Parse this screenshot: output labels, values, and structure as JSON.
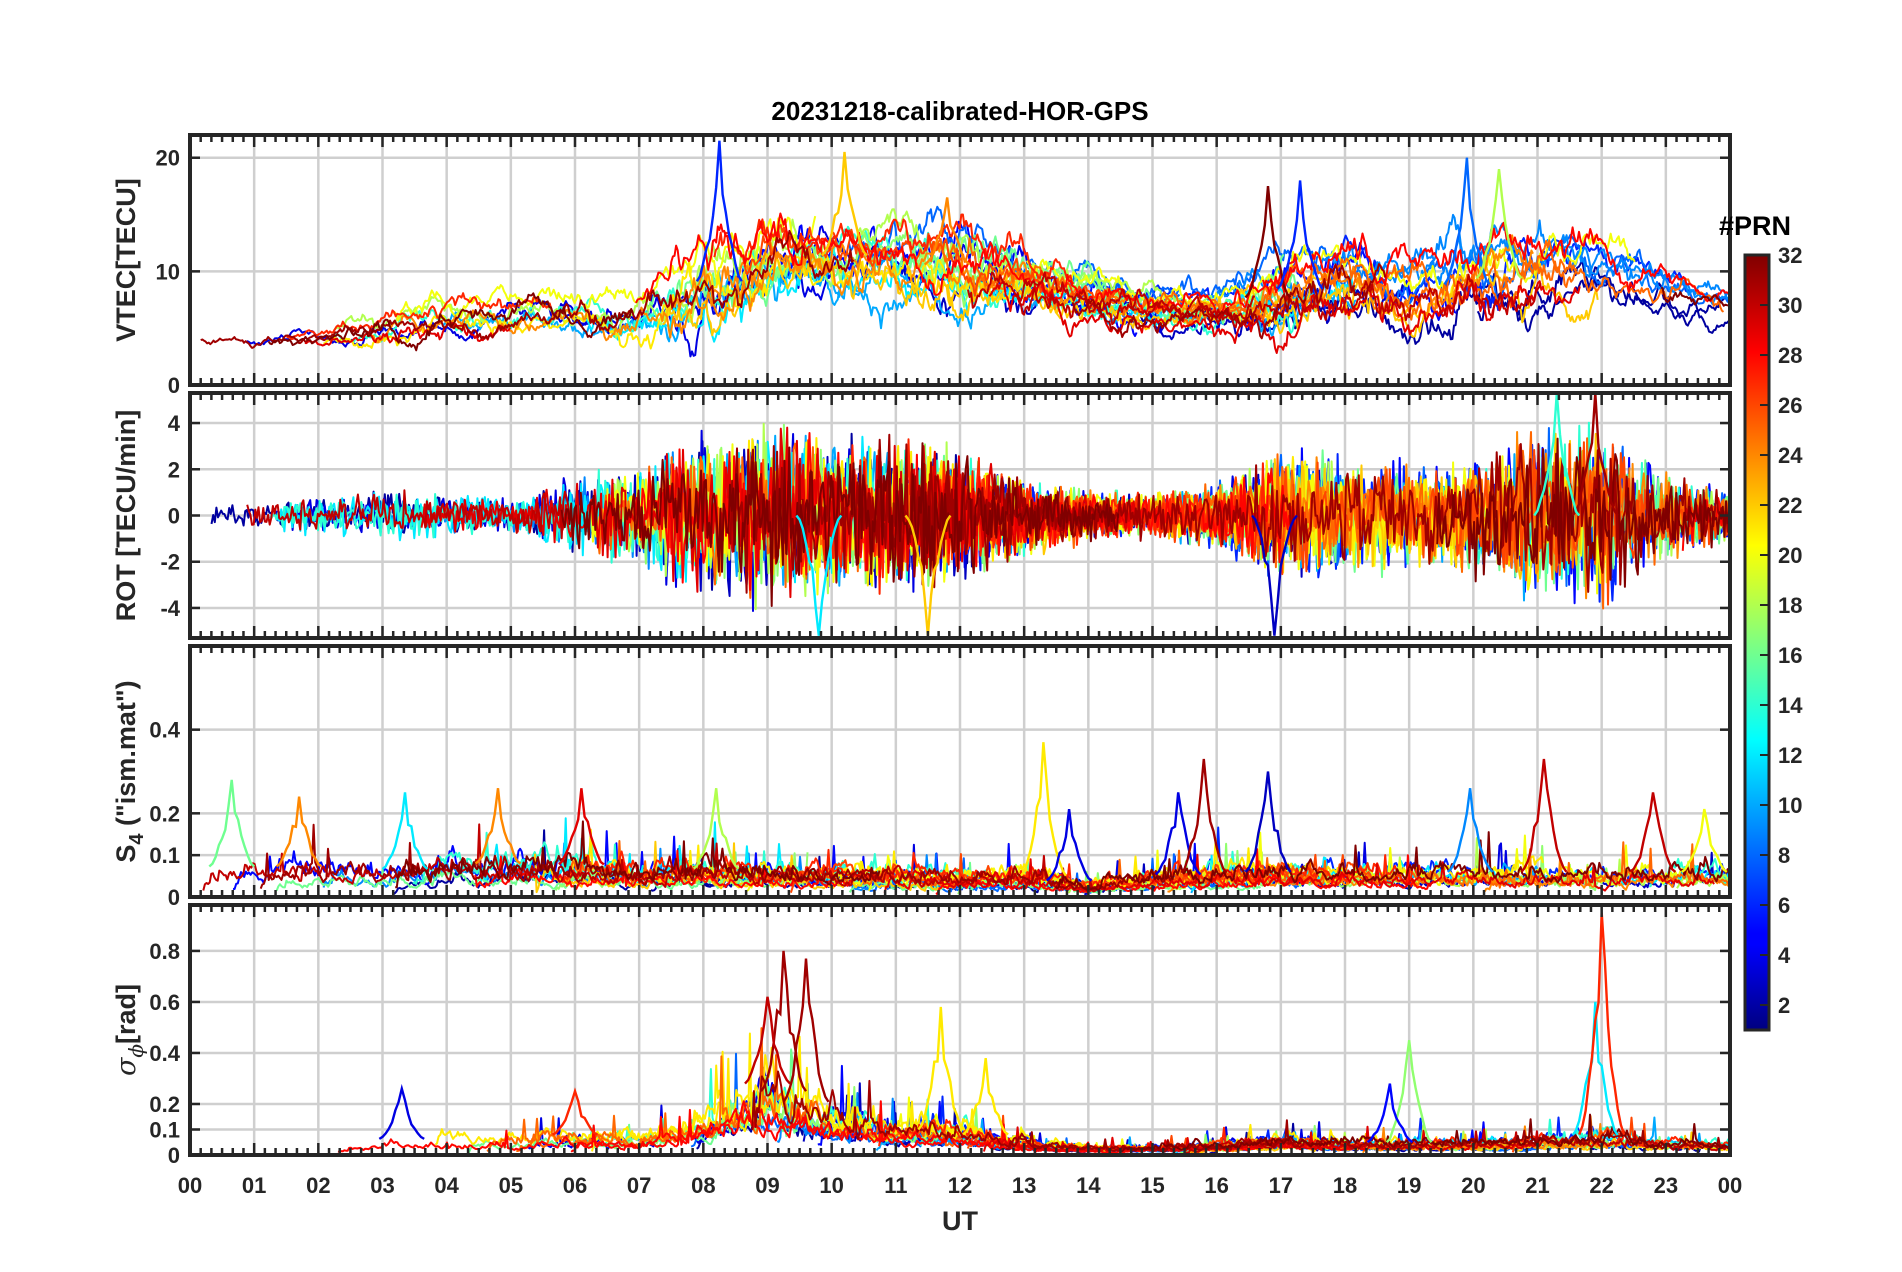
{
  "chart_data": {
    "type": "line",
    "title": "20231218-calibrated-HOR-GPS",
    "xlabel": "UT",
    "x_ticks": [
      "00",
      "01",
      "02",
      "03",
      "04",
      "05",
      "06",
      "07",
      "08",
      "09",
      "10",
      "11",
      "12",
      "13",
      "14",
      "15",
      "16",
      "17",
      "18",
      "19",
      "20",
      "21",
      "22",
      "23",
      "00"
    ],
    "xlim": [
      0,
      24
    ],
    "panels": [
      {
        "id": "vtec",
        "ylabel": "VTEC[TECU]",
        "ylim": [
          0,
          22
        ],
        "yticks": [
          0,
          10,
          20
        ],
        "ytick_labels": [
          "0",
          "10",
          "20"
        ],
        "envelope": {
          "hours": [
            0,
            1,
            2,
            3,
            4,
            5,
            6,
            7,
            8,
            9,
            10,
            11,
            12,
            13,
            14,
            15,
            16,
            17,
            18,
            19,
            20,
            21,
            22,
            23,
            24
          ],
          "base": [
            4.0,
            3.8,
            4.2,
            5.0,
            6.0,
            6.2,
            6.5,
            6.0,
            8.5,
            11.0,
            11.5,
            11.0,
            10.5,
            9.0,
            8.0,
            7.0,
            6.5,
            8.0,
            9.5,
            7.5,
            9.0,
            10.0,
            9.5,
            8.5,
            7.0
          ],
          "spread": [
            0.8,
            0.9,
            1.0,
            1.6,
            1.8,
            1.8,
            2.0,
            2.5,
            4.5,
            4.0,
            3.5,
            3.5,
            4.0,
            3.0,
            2.5,
            2.0,
            2.0,
            3.5,
            3.5,
            3.0,
            4.0,
            3.5,
            3.0,
            2.0,
            1.5
          ]
        },
        "peaks": [
          {
            "t": 8.25,
            "v": 21.5,
            "prn": 6
          },
          {
            "t": 10.2,
            "v": 20.5,
            "prn": 22
          },
          {
            "t": 11.8,
            "v": 16.5,
            "prn": 24
          },
          {
            "t": 16.8,
            "v": 17.5,
            "prn": 32
          },
          {
            "t": 17.3,
            "v": 18.0,
            "prn": 6
          },
          {
            "t": 19.9,
            "v": 20.0,
            "prn": 8
          },
          {
            "t": 20.4,
            "v": 19.0,
            "prn": 18
          }
        ]
      },
      {
        "id": "rot",
        "ylabel": "ROT [TECU/min]",
        "ylim": [
          -5.3,
          5.3
        ],
        "yticks": [
          -4,
          -2,
          0,
          2,
          4
        ],
        "ytick_labels": [
          "-4",
          "-2",
          "0",
          "2",
          "4"
        ],
        "envelope": {
          "hours": [
            0,
            1,
            2,
            3,
            4,
            5,
            6,
            7,
            8,
            9,
            10,
            11,
            12,
            13,
            14,
            15,
            16,
            17,
            18,
            19,
            20,
            21,
            22,
            23,
            24
          ],
          "amplitude": [
            0.4,
            0.5,
            0.6,
            0.9,
            0.7,
            0.6,
            1.2,
            1.6,
            2.6,
            2.8,
            2.4,
            2.6,
            2.0,
            1.2,
            0.8,
            0.7,
            1.0,
            2.2,
            1.8,
            1.6,
            1.8,
            2.8,
            2.8,
            1.4,
            0.8
          ]
        },
        "peaks": [
          {
            "t": 21.9,
            "v": 5.3,
            "prn": 31
          },
          {
            "t": 21.3,
            "v": 5.3,
            "prn": 14
          },
          {
            "t": 11.5,
            "v": -5.2,
            "prn": 22
          },
          {
            "t": 16.9,
            "v": -5.2,
            "prn": 3
          },
          {
            "t": 9.8,
            "v": -5.2,
            "prn": 12
          }
        ]
      },
      {
        "id": "s4",
        "ylabel_base": "S",
        "ylabel_sub": "4",
        "ylabel_rest": " (\"ism.mat\")",
        "ylim": [
          0,
          0.6
        ],
        "yticks": [
          0,
          0.1,
          0.2,
          0.4
        ],
        "ytick_labels": [
          "0",
          "0.1",
          "0.2",
          "0.4"
        ],
        "envelope": {
          "hours": [
            0,
            1,
            2,
            3,
            4,
            5,
            6,
            7,
            8,
            9,
            10,
            11,
            12,
            13,
            14,
            15,
            16,
            17,
            18,
            19,
            20,
            21,
            22,
            23,
            24
          ],
          "level": [
            0.06,
            0.08,
            0.07,
            0.06,
            0.08,
            0.08,
            0.08,
            0.06,
            0.07,
            0.06,
            0.06,
            0.06,
            0.05,
            0.06,
            0.03,
            0.05,
            0.06,
            0.06,
            0.06,
            0.06,
            0.06,
            0.06,
            0.06,
            0.06,
            0.06
          ]
        },
        "peaks": [
          {
            "t": 0.65,
            "v": 0.28,
            "prn": 16
          },
          {
            "t": 1.7,
            "v": 0.24,
            "prn": 24
          },
          {
            "t": 3.35,
            "v": 0.25,
            "prn": 12
          },
          {
            "t": 4.8,
            "v": 0.26,
            "prn": 24
          },
          {
            "t": 6.1,
            "v": 0.26,
            "prn": 29
          },
          {
            "t": 8.2,
            "v": 0.26,
            "prn": 18
          },
          {
            "t": 13.3,
            "v": 0.37,
            "prn": 21
          },
          {
            "t": 13.7,
            "v": 0.21,
            "prn": 4
          },
          {
            "t": 15.4,
            "v": 0.25,
            "prn": 4
          },
          {
            "t": 15.8,
            "v": 0.33,
            "prn": 31
          },
          {
            "t": 16.8,
            "v": 0.3,
            "prn": 3
          },
          {
            "t": 19.95,
            "v": 0.26,
            "prn": 9
          },
          {
            "t": 21.1,
            "v": 0.33,
            "prn": 30
          },
          {
            "t": 22.8,
            "v": 0.25,
            "prn": 30
          },
          {
            "t": 23.6,
            "v": 0.21,
            "prn": 20
          }
        ]
      },
      {
        "id": "sigphi",
        "ylabel_sym": "σ",
        "ylabel_sub": "ϕ",
        "ylabel_rest": "[rad]",
        "ylim": [
          0,
          0.98
        ],
        "yticks": [
          0,
          0.1,
          0.2,
          0.4,
          0.6,
          0.8
        ],
        "ytick_labels": [
          "0",
          "0.1",
          "0.2",
          "0.4",
          "0.6",
          "0.8"
        ],
        "envelope": {
          "hours": [
            0,
            1,
            2,
            3,
            4,
            5,
            6,
            7,
            8,
            9,
            10,
            11,
            12,
            13,
            14,
            15,
            16,
            17,
            18,
            19,
            20,
            21,
            22,
            23,
            24
          ],
          "level": [
            0.04,
            0.05,
            0.05,
            0.06,
            0.07,
            0.07,
            0.08,
            0.06,
            0.14,
            0.28,
            0.16,
            0.1,
            0.1,
            0.05,
            0.03,
            0.03,
            0.04,
            0.06,
            0.05,
            0.05,
            0.05,
            0.06,
            0.08,
            0.05,
            0.04
          ]
        },
        "peaks": [
          {
            "t": 9.25,
            "v": 0.8,
            "prn": 31
          },
          {
            "t": 9.6,
            "v": 0.77,
            "prn": 31
          },
          {
            "t": 9.0,
            "v": 0.62,
            "prn": 30
          },
          {
            "t": 11.7,
            "v": 0.58,
            "prn": 21
          },
          {
            "t": 21.9,
            "v": 0.6,
            "prn": 12
          },
          {
            "t": 22.0,
            "v": 0.95,
            "prn": 27
          },
          {
            "t": 19.0,
            "v": 0.45,
            "prn": 17
          },
          {
            "t": 12.4,
            "v": 0.38,
            "prn": 21
          },
          {
            "t": 3.3,
            "v": 0.26,
            "prn": 4
          },
          {
            "t": 6.0,
            "v": 0.25,
            "prn": 27
          },
          {
            "t": 18.7,
            "v": 0.28,
            "prn": 5
          }
        ]
      }
    ],
    "colorbar": {
      "label": "#PRN",
      "range": [
        1,
        32
      ],
      "ticks": [
        2,
        4,
        6,
        8,
        10,
        12,
        14,
        16,
        18,
        20,
        22,
        24,
        26,
        28,
        30,
        32
      ],
      "tick_labels": [
        "2",
        "4",
        "6",
        "8",
        "10",
        "12",
        "14",
        "16",
        "18",
        "20",
        "22",
        "24",
        "26",
        "28",
        "30",
        "32"
      ],
      "colormap": "jet"
    },
    "series_prns": [
      2,
      3,
      4,
      5,
      6,
      8,
      9,
      10,
      12,
      14,
      16,
      17,
      18,
      20,
      21,
      22,
      24,
      25,
      26,
      27,
      28,
      29,
      30,
      31,
      32
    ]
  }
}
